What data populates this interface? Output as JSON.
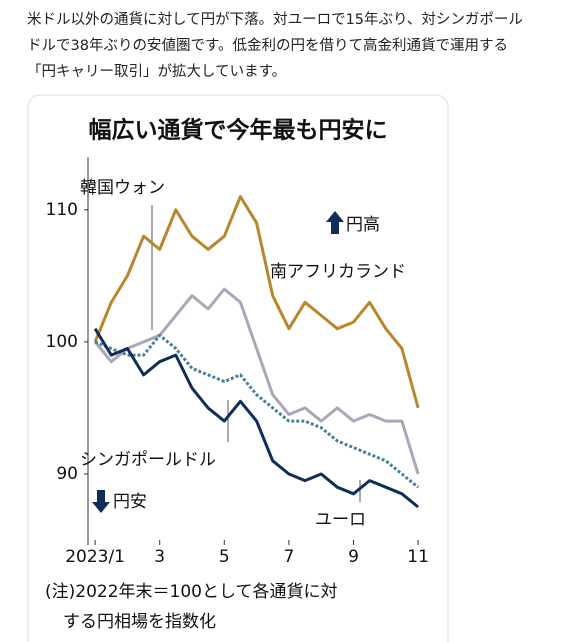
{
  "caption": [
    "米ドル以外の通貨に対して円が下落。対ユーロで15年ぶり、対シンガポール",
    "ドルで38年ぶりの安値圏です。低金利の円を借りて高金利通貨で運用する",
    "「円キャリー取引」が拡大しています。"
  ],
  "chart_data": {
    "type": "line",
    "title": "幅広い通貨で今年最も円安に",
    "x": [
      1,
      1.5,
      2,
      2.5,
      3,
      3.5,
      4,
      4.5,
      5,
      5.5,
      6,
      6.5,
      7,
      7.5,
      8,
      8.5,
      9,
      9.5,
      10,
      10.5,
      11
    ],
    "series": [
      {
        "name": "南アフリカランド",
        "color": "#b8862b",
        "values": [
          100,
          103,
          105,
          108,
          107,
          110,
          108,
          107,
          108,
          111,
          109,
          103.5,
          101,
          103,
          102,
          101,
          101.5,
          103,
          101,
          99.5,
          95
        ]
      },
      {
        "name": "韓国ウォン",
        "color": "#a9a8b8",
        "values": [
          100,
          98.5,
          99.5,
          100,
          100.5,
          102,
          103.5,
          102.5,
          104,
          103,
          99.5,
          96,
          94.5,
          95,
          94,
          95,
          94,
          94.5,
          94,
          94,
          90
        ]
      },
      {
        "name": "シンガポールドル",
        "color": "#4a7f9a",
        "dash": true,
        "values": [
          100,
          99.5,
          99,
          99,
          100.5,
          99.5,
          98,
          97.5,
          97,
          97.5,
          96,
          95,
          94,
          94,
          93.5,
          92.5,
          92,
          91.5,
          91,
          90,
          89
        ]
      },
      {
        "name": "ユーロ",
        "color": "#0f2d5a",
        "values": [
          101,
          99,
          99.5,
          97.5,
          98.5,
          99,
          96.5,
          95,
          94,
          95.5,
          94,
          91,
          90,
          89.5,
          90,
          89,
          88.5,
          89.5,
          89,
          88.5,
          87.5
        ]
      }
    ],
    "xlim": [
      0.78,
      11.4
    ],
    "xticks": [
      {
        "value": 1,
        "label": "2023/1"
      },
      3,
      5,
      7,
      9,
      11
    ],
    "ylim": [
      85,
      114
    ],
    "yticks": [
      90,
      100,
      110
    ],
    "annotations": [
      "円高",
      "円安"
    ],
    "note": [
      "(注)2022年末＝100として各通貨に対",
      "する円相場を指数化"
    ]
  }
}
